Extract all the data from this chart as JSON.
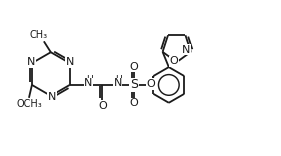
{
  "bg_color": "#ffffff",
  "line_color": "#1a1a1a",
  "line_width": 1.3,
  "font_size": 7.5,
  "figsize": [
    2.81,
    1.56
  ],
  "dpi": 100,
  "xlim": [
    0,
    28.1
  ],
  "ylim": [
    0,
    15.6
  ]
}
